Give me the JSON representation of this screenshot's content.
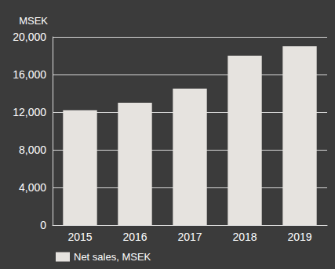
{
  "chart_data": {
    "type": "bar",
    "y_label": "MSEK",
    "categories": [
      "2015",
      "2016",
      "2017",
      "2018",
      "2019"
    ],
    "series": [
      {
        "name": "Net sales, MSEK",
        "color": "#e6e3df",
        "values": [
          12200,
          13000,
          14500,
          18000,
          19000
        ]
      }
    ],
    "ylim": [
      0,
      20000
    ],
    "yticks": [
      0,
      {
        "value": 4000,
        "label": "4,000"
      },
      {
        "value": 8000,
        "label": "8,000"
      },
      {
        "value": 12000,
        "label": "12,000"
      },
      {
        "value": 16000,
        "label": "16,000"
      },
      {
        "value": 20000,
        "label": "20,000"
      }
    ],
    "grid": true,
    "legend": "bottom-left"
  }
}
